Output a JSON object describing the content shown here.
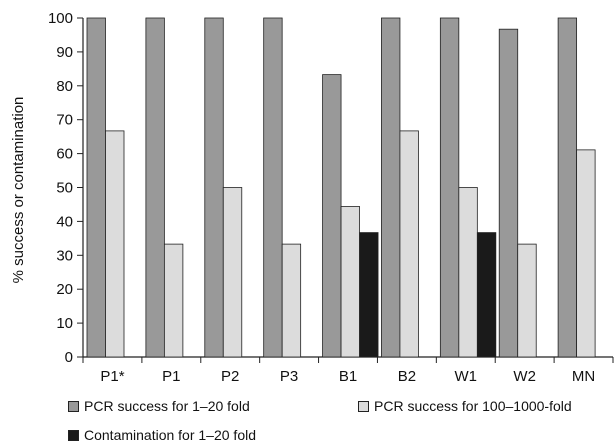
{
  "chart_data": {
    "type": "bar",
    "categories": [
      "P1*",
      "P1",
      "P2",
      "P3",
      "B1",
      "B2",
      "W1",
      "W2",
      "MN"
    ],
    "series": [
      {
        "name": "PCR success for 1–20 fold",
        "color": "#999999",
        "values": [
          100,
          100,
          100,
          100,
          83.3,
          100,
          100,
          96.7,
          100
        ]
      },
      {
        "name": "PCR success for 100–1000-fold",
        "color": "#dcdcdc",
        "values": [
          66.7,
          33.3,
          50,
          33.3,
          44.4,
          66.7,
          50,
          33.3,
          61.1
        ]
      },
      {
        "name": "Contamination for 1–20 fold",
        "color": "#1a1a1a",
        "values": [
          0,
          0,
          0,
          0,
          36.7,
          0,
          36.7,
          0,
          0
        ]
      }
    ],
    "ylabel": "% success or contamination",
    "xlabel": "",
    "ylim": [
      0,
      100
    ],
    "yticks": [
      0,
      10,
      20,
      30,
      40,
      50,
      60,
      70,
      80,
      90,
      100
    ],
    "grid": false,
    "legend_position": "bottom"
  }
}
